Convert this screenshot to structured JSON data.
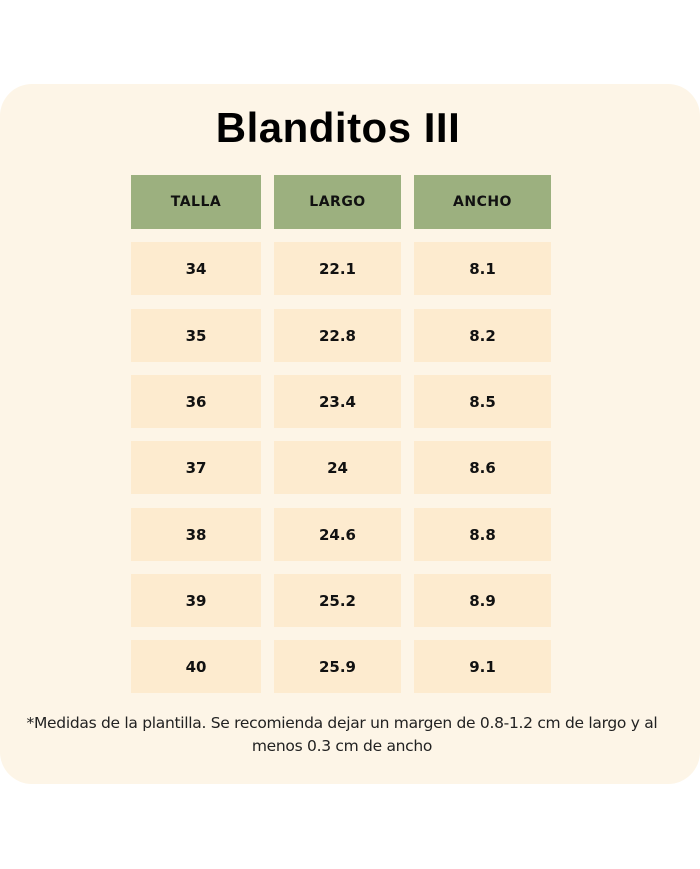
{
  "title": "Blanditos III",
  "colors": {
    "background": "#fdf5e7",
    "header": "#9cb07f",
    "cell": "#fdebcf"
  },
  "table": {
    "headers": [
      "TALLA",
      "LARGO",
      "ANCHO"
    ],
    "rows": [
      [
        "34",
        "22.1",
        "8.1"
      ],
      [
        "35",
        "22.8",
        "8.2"
      ],
      [
        "36",
        "23.4",
        "8.5"
      ],
      [
        "37",
        "24",
        "8.6"
      ],
      [
        "38",
        "24.6",
        "8.8"
      ],
      [
        "39",
        "25.2",
        "8.9"
      ],
      [
        "40",
        "25.9",
        "9.1"
      ]
    ]
  },
  "note": "*Medidas de la plantilla. Se recomienda dejar un margen de 0.8-1.2 cm de largo y al menos 0.3 cm de ancho"
}
